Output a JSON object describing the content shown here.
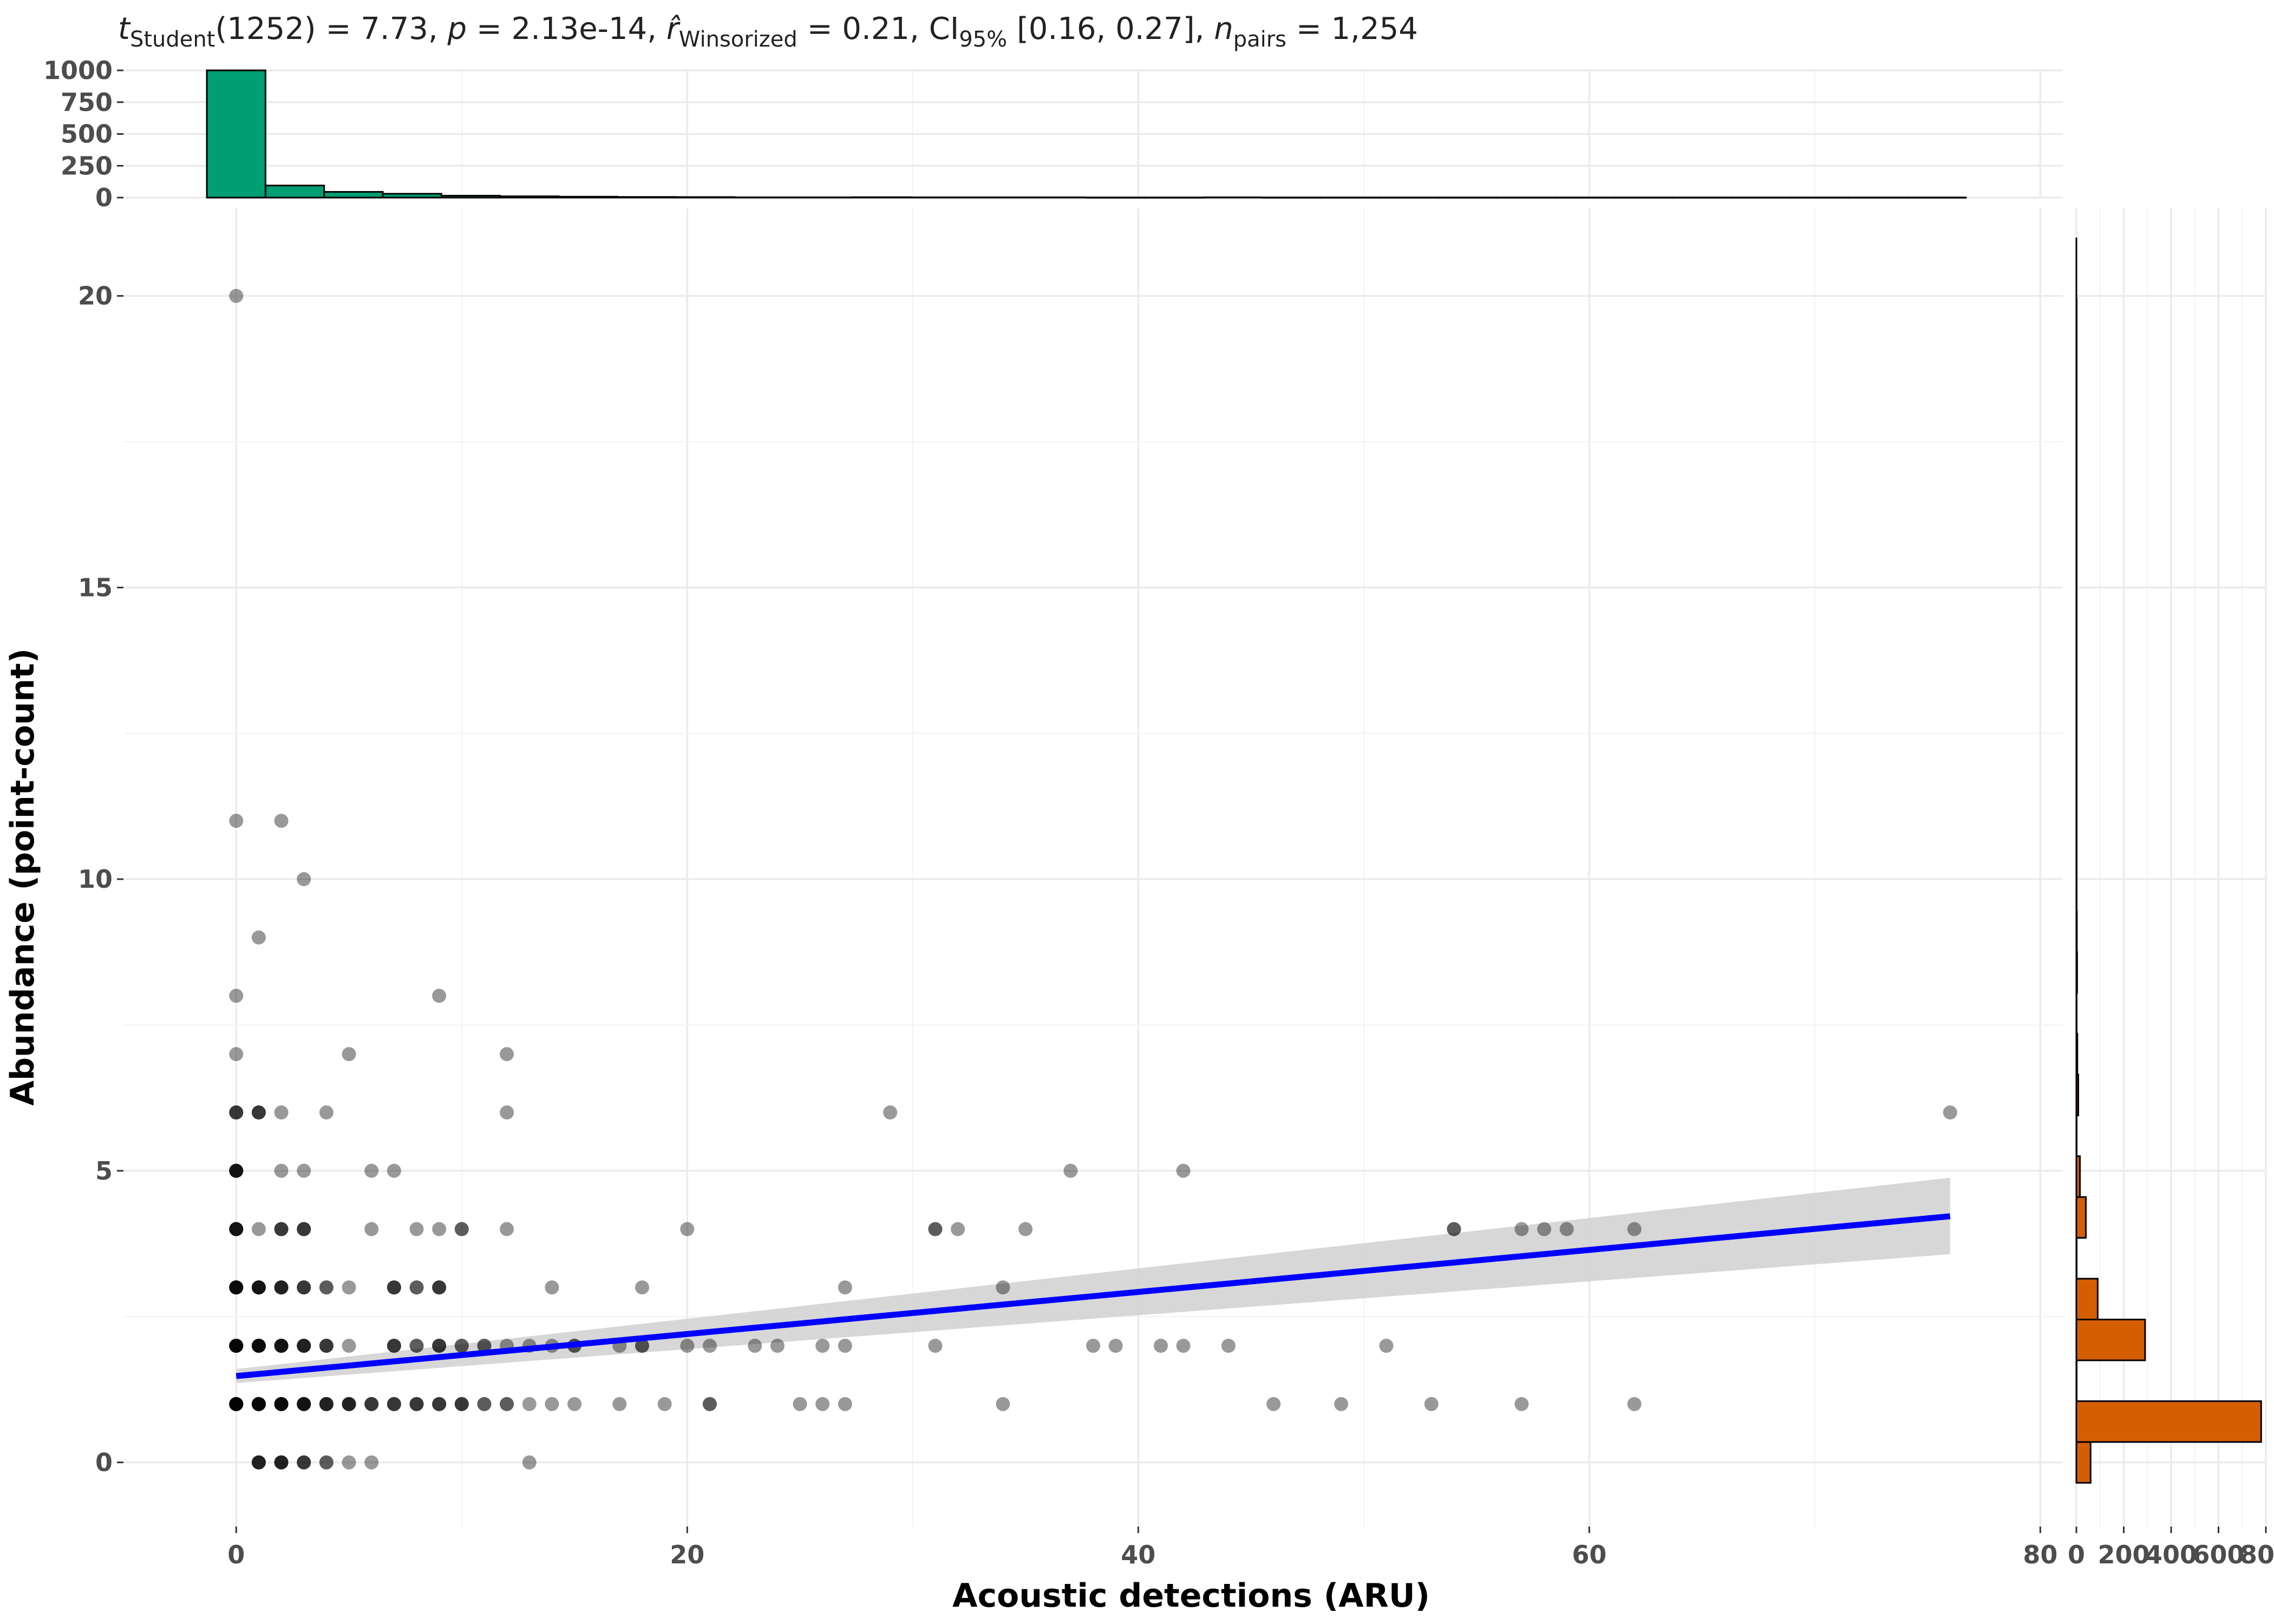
{
  "chart_data": [
    {
      "type": "scatter",
      "title": "",
      "subtitle_parts": {
        "t": "t",
        "t_sub": "Student",
        "t_val": "(1252) = 7.73, ",
        "p": "p",
        "p_val": " = 2.13e-14, ",
        "r": "r̂",
        "r_sub": "Winsorized",
        "r_val": " = 0.21, CI",
        "ci_sub": "95%",
        "ci_val": " [0.16, 0.27], ",
        "n": "n",
        "n_sub": "pairs",
        "n_val": " = 1,254"
      },
      "xlabel": "Acoustic detections (ARU)",
      "ylabel": "Abundance (point-count)",
      "xlim": [
        -5,
        81
      ],
      "ylim": [
        -1.1,
        21.5
      ],
      "xticks": [
        0,
        20,
        40,
        60,
        80
      ],
      "yticks": [
        0,
        5,
        10,
        15,
        20
      ],
      "point_color": "#000000",
      "point_alpha": 0.4,
      "points": [
        [
          0,
          20
        ],
        [
          0,
          11
        ],
        [
          2,
          11
        ],
        [
          3,
          10
        ],
        [
          1,
          9
        ],
        [
          0,
          8
        ],
        [
          9,
          8
        ],
        [
          0,
          7
        ],
        [
          5,
          7
        ],
        [
          12,
          7
        ],
        [
          0,
          6
        ],
        [
          0,
          6
        ],
        [
          0,
          6
        ],
        [
          1,
          6
        ],
        [
          1,
          6
        ],
        [
          1,
          6
        ],
        [
          2,
          6
        ],
        [
          4,
          6
        ],
        [
          12,
          6
        ],
        [
          29,
          6
        ],
        [
          76,
          6
        ],
        [
          0,
          5
        ],
        [
          0,
          5
        ],
        [
          0,
          5
        ],
        [
          0,
          5
        ],
        [
          0,
          5
        ],
        [
          2,
          5
        ],
        [
          3,
          5
        ],
        [
          6,
          5
        ],
        [
          7,
          5
        ],
        [
          37,
          5
        ],
        [
          42,
          5
        ],
        [
          0,
          4
        ],
        [
          0,
          4
        ],
        [
          0,
          4
        ],
        [
          0,
          4
        ],
        [
          0,
          4
        ],
        [
          1,
          4
        ],
        [
          2,
          4
        ],
        [
          2,
          4
        ],
        [
          2,
          4
        ],
        [
          3,
          4
        ],
        [
          3,
          4
        ],
        [
          3,
          4
        ],
        [
          6,
          4
        ],
        [
          8,
          4
        ],
        [
          9,
          4
        ],
        [
          10,
          4
        ],
        [
          10,
          4
        ],
        [
          12,
          4
        ],
        [
          20,
          4
        ],
        [
          31,
          4
        ],
        [
          31,
          4
        ],
        [
          32,
          4
        ],
        [
          35,
          4
        ],
        [
          54,
          4
        ],
        [
          54,
          4
        ],
        [
          57,
          4
        ],
        [
          58,
          4
        ],
        [
          59,
          4
        ],
        [
          62,
          4
        ],
        [
          0,
          3
        ],
        [
          0,
          3
        ],
        [
          0,
          3
        ],
        [
          0,
          3
        ],
        [
          0,
          3
        ],
        [
          0,
          3
        ],
        [
          1,
          3
        ],
        [
          1,
          3
        ],
        [
          1,
          3
        ],
        [
          1,
          3
        ],
        [
          1,
          3
        ],
        [
          2,
          3
        ],
        [
          2,
          3
        ],
        [
          2,
          3
        ],
        [
          2,
          3
        ],
        [
          3,
          3
        ],
        [
          3,
          3
        ],
        [
          3,
          3
        ],
        [
          4,
          3
        ],
        [
          4,
          3
        ],
        [
          5,
          3
        ],
        [
          7,
          3
        ],
        [
          7,
          3
        ],
        [
          7,
          3
        ],
        [
          8,
          3
        ],
        [
          8,
          3
        ],
        [
          9,
          3
        ],
        [
          9,
          3
        ],
        [
          9,
          3
        ],
        [
          14,
          3
        ],
        [
          18,
          3
        ],
        [
          27,
          3
        ],
        [
          34,
          3
        ],
        [
          0,
          2
        ],
        [
          0,
          2
        ],
        [
          0,
          2
        ],
        [
          0,
          2
        ],
        [
          0,
          2
        ],
        [
          0,
          2
        ],
        [
          0,
          2
        ],
        [
          1,
          2
        ],
        [
          1,
          2
        ],
        [
          1,
          2
        ],
        [
          1,
          2
        ],
        [
          1,
          2
        ],
        [
          1,
          2
        ],
        [
          2,
          2
        ],
        [
          2,
          2
        ],
        [
          2,
          2
        ],
        [
          2,
          2
        ],
        [
          2,
          2
        ],
        [
          3,
          2
        ],
        [
          3,
          2
        ],
        [
          3,
          2
        ],
        [
          3,
          2
        ],
        [
          4,
          2
        ],
        [
          4,
          2
        ],
        [
          4,
          2
        ],
        [
          5,
          2
        ],
        [
          7,
          2
        ],
        [
          7,
          2
        ],
        [
          7,
          2
        ],
        [
          8,
          2
        ],
        [
          8,
          2
        ],
        [
          9,
          2
        ],
        [
          9,
          2
        ],
        [
          9,
          2
        ],
        [
          10,
          2
        ],
        [
          10,
          2
        ],
        [
          11,
          2
        ],
        [
          11,
          2
        ],
        [
          12,
          2
        ],
        [
          13,
          2
        ],
        [
          14,
          2
        ],
        [
          15,
          2
        ],
        [
          15,
          2
        ],
        [
          17,
          2
        ],
        [
          18,
          2
        ],
        [
          18,
          2
        ],
        [
          20,
          2
        ],
        [
          21,
          2
        ],
        [
          23,
          2
        ],
        [
          24,
          2
        ],
        [
          26,
          2
        ],
        [
          27,
          2
        ],
        [
          31,
          2
        ],
        [
          38,
          2
        ],
        [
          39,
          2
        ],
        [
          41,
          2
        ],
        [
          42,
          2
        ],
        [
          44,
          2
        ],
        [
          51,
          2
        ],
        [
          0,
          1
        ],
        [
          0,
          1
        ],
        [
          0,
          1
        ],
        [
          0,
          1
        ],
        [
          0,
          1
        ],
        [
          0,
          1
        ],
        [
          0,
          1
        ],
        [
          0,
          1
        ],
        [
          1,
          1
        ],
        [
          1,
          1
        ],
        [
          1,
          1
        ],
        [
          1,
          1
        ],
        [
          1,
          1
        ],
        [
          1,
          1
        ],
        [
          1,
          1
        ],
        [
          2,
          1
        ],
        [
          2,
          1
        ],
        [
          2,
          1
        ],
        [
          2,
          1
        ],
        [
          2,
          1
        ],
        [
          2,
          1
        ],
        [
          3,
          1
        ],
        [
          3,
          1
        ],
        [
          3,
          1
        ],
        [
          3,
          1
        ],
        [
          3,
          1
        ],
        [
          4,
          1
        ],
        [
          4,
          1
        ],
        [
          4,
          1
        ],
        [
          4,
          1
        ],
        [
          5,
          1
        ],
        [
          5,
          1
        ],
        [
          5,
          1
        ],
        [
          5,
          1
        ],
        [
          6,
          1
        ],
        [
          6,
          1
        ],
        [
          6,
          1
        ],
        [
          7,
          1
        ],
        [
          7,
          1
        ],
        [
          7,
          1
        ],
        [
          8,
          1
        ],
        [
          8,
          1
        ],
        [
          8,
          1
        ],
        [
          9,
          1
        ],
        [
          9,
          1
        ],
        [
          9,
          1
        ],
        [
          10,
          1
        ],
        [
          10,
          1
        ],
        [
          10,
          1
        ],
        [
          11,
          1
        ],
        [
          11,
          1
        ],
        [
          12,
          1
        ],
        [
          12,
          1
        ],
        [
          13,
          1
        ],
        [
          14,
          1
        ],
        [
          15,
          1
        ],
        [
          17,
          1
        ],
        [
          19,
          1
        ],
        [
          21,
          1
        ],
        [
          21,
          1
        ],
        [
          25,
          1
        ],
        [
          26,
          1
        ],
        [
          27,
          1
        ],
        [
          34,
          1
        ],
        [
          46,
          1
        ],
        [
          49,
          1
        ],
        [
          53,
          1
        ],
        [
          57,
          1
        ],
        [
          62,
          1
        ],
        [
          1,
          0
        ],
        [
          1,
          0
        ],
        [
          1,
          0
        ],
        [
          1,
          0
        ],
        [
          2,
          0
        ],
        [
          2,
          0
        ],
        [
          2,
          0
        ],
        [
          2,
          0
        ],
        [
          3,
          0
        ],
        [
          3,
          0
        ],
        [
          3,
          0
        ],
        [
          4,
          0
        ],
        [
          4,
          0
        ],
        [
          5,
          0
        ],
        [
          6,
          0
        ],
        [
          13,
          0
        ]
      ],
      "regression": {
        "color": "#0000ff",
        "band_color": "#d3d3d3",
        "x": [
          0,
          76
        ],
        "fit": [
          1.48,
          4.22
        ],
        "lower": [
          1.36,
          3.57
        ],
        "upper": [
          1.6,
          4.88
        ]
      }
    },
    {
      "type": "bar",
      "role": "x-marginal histogram",
      "fill": "#009e73",
      "bin_width": 2.6,
      "bin_start": -1.3,
      "yticks": [
        0,
        250,
        500,
        750,
        1000
      ],
      "ylim": [
        0,
        1000
      ],
      "counts": [
        1000,
        95,
        45,
        30,
        15,
        10,
        7,
        5,
        4,
        2,
        2,
        3,
        2,
        2,
        2,
        1,
        1,
        2,
        1,
        1,
        1,
        1,
        1,
        1,
        1,
        1,
        1,
        1,
        1,
        1
      ]
    },
    {
      "type": "bar",
      "role": "y-marginal histogram",
      "orientation": "horizontal",
      "fill": "#d55e00",
      "bin_width": 0.7,
      "bin_start": -0.35,
      "xticks": [
        0,
        200,
        400,
        600,
        800
      ],
      "xlim": [
        0,
        800
      ],
      "counts": [
        60,
        780,
        0,
        290,
        90,
        0,
        40,
        15,
        0,
        8,
        4,
        0,
        3,
        2,
        0,
        1,
        1,
        0,
        0,
        0,
        0,
        0,
        0,
        0,
        0,
        0,
        0,
        0,
        1
      ]
    }
  ]
}
